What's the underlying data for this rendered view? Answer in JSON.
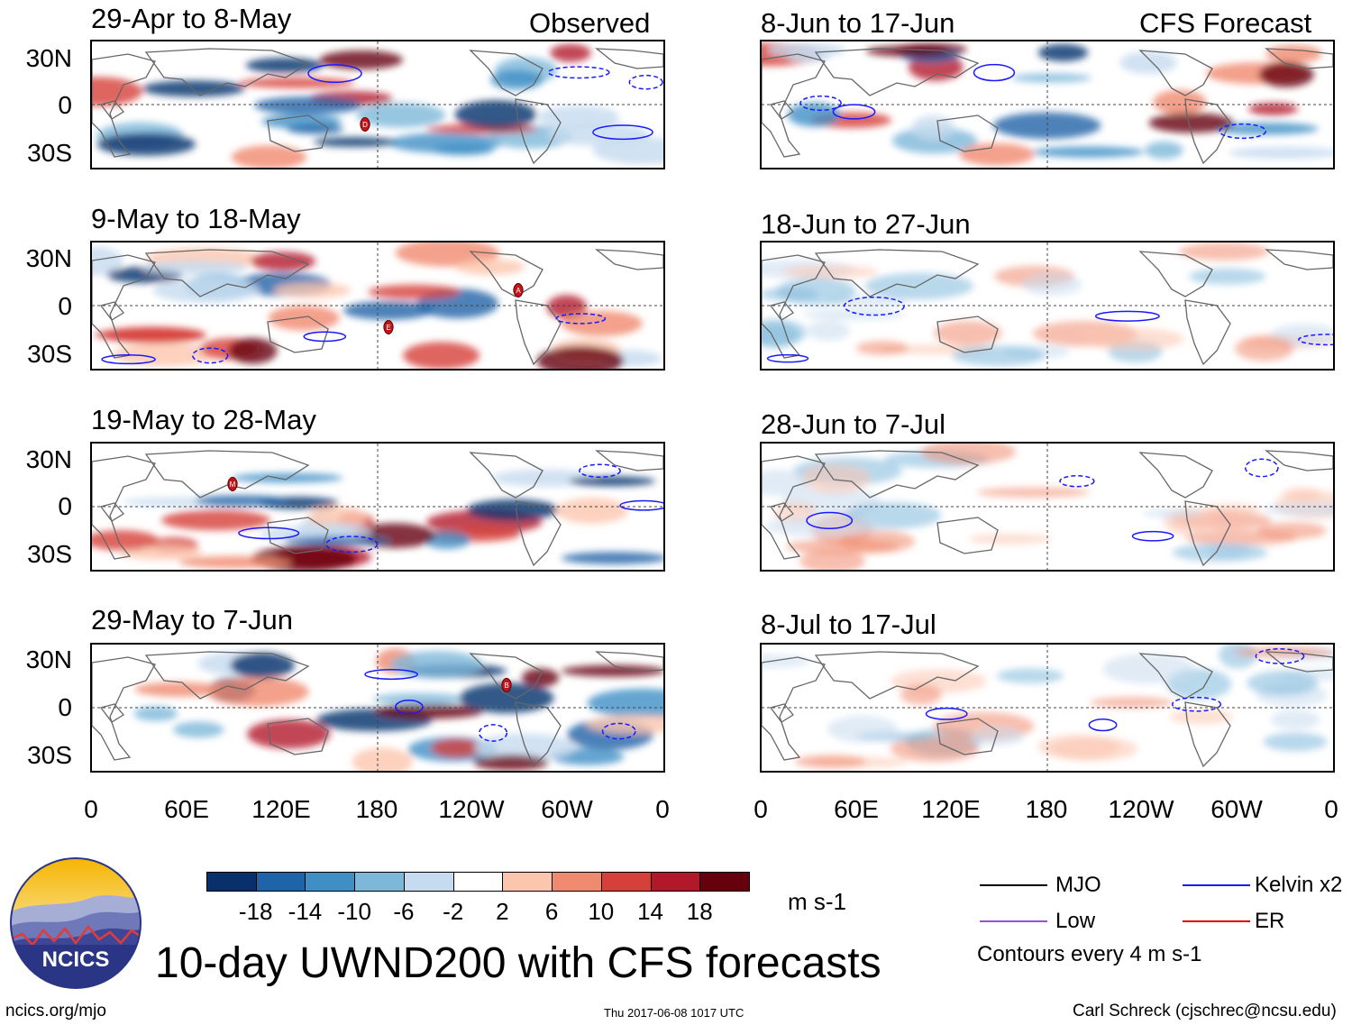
{
  "columns": {
    "observed_label": "Observed",
    "forecast_label": "CFS Forecast"
  },
  "observed_panels": [
    {
      "title": "29-Apr to 8-May",
      "storms": [
        "D"
      ]
    },
    {
      "title": "9-May to 18-May",
      "storms": [
        "A",
        "E"
      ]
    },
    {
      "title": "19-May to 28-May",
      "storms": [
        "M"
      ]
    },
    {
      "title": "29-May to 7-Jun",
      "storms": [
        "B"
      ]
    }
  ],
  "forecast_panels": [
    {
      "title": "8-Jun to 17-Jun"
    },
    {
      "title": "18-Jun to 27-Jun"
    },
    {
      "title": "28-Jun to 7-Jul"
    },
    {
      "title": "8-Jul to 17-Jul"
    }
  ],
  "lat_labels": [
    "30N",
    "0",
    "30S"
  ],
  "lon_labels": [
    "0",
    "60E",
    "120E",
    "180",
    "120W",
    "60W",
    "0"
  ],
  "colorbar": {
    "labels": [
      "-18",
      "-14",
      "-10",
      "-6",
      "-2",
      "2",
      "6",
      "10",
      "14",
      "18"
    ],
    "colors": [
      "#08306b",
      "#1f63a8",
      "#3f8fc5",
      "#7db8da",
      "#c6dbef",
      "#ffffff",
      "#fcc5ae",
      "#f08a6e",
      "#d6403a",
      "#b3182a",
      "#67000d"
    ],
    "units": "m s-1"
  },
  "legend": {
    "items": [
      {
        "label": "MJO",
        "color": "#000000"
      },
      {
        "label": "Kelvin x2",
        "color": "#1a1aff"
      },
      {
        "label": "Low",
        "color": "#9a4fd6"
      },
      {
        "label": "ER",
        "color": "#e00000"
      }
    ],
    "contour_note": "Contours every 4 m s-1"
  },
  "logo": {
    "text": "NCICS"
  },
  "main_title": "10-day UWND200 with CFS forecasts",
  "footer": {
    "left": "ncics.org/mjo",
    "center": "Thu 2017-06-08 1017 UTC",
    "right": "Carl Schreck (cjschrec@ncsu.edu)"
  }
}
